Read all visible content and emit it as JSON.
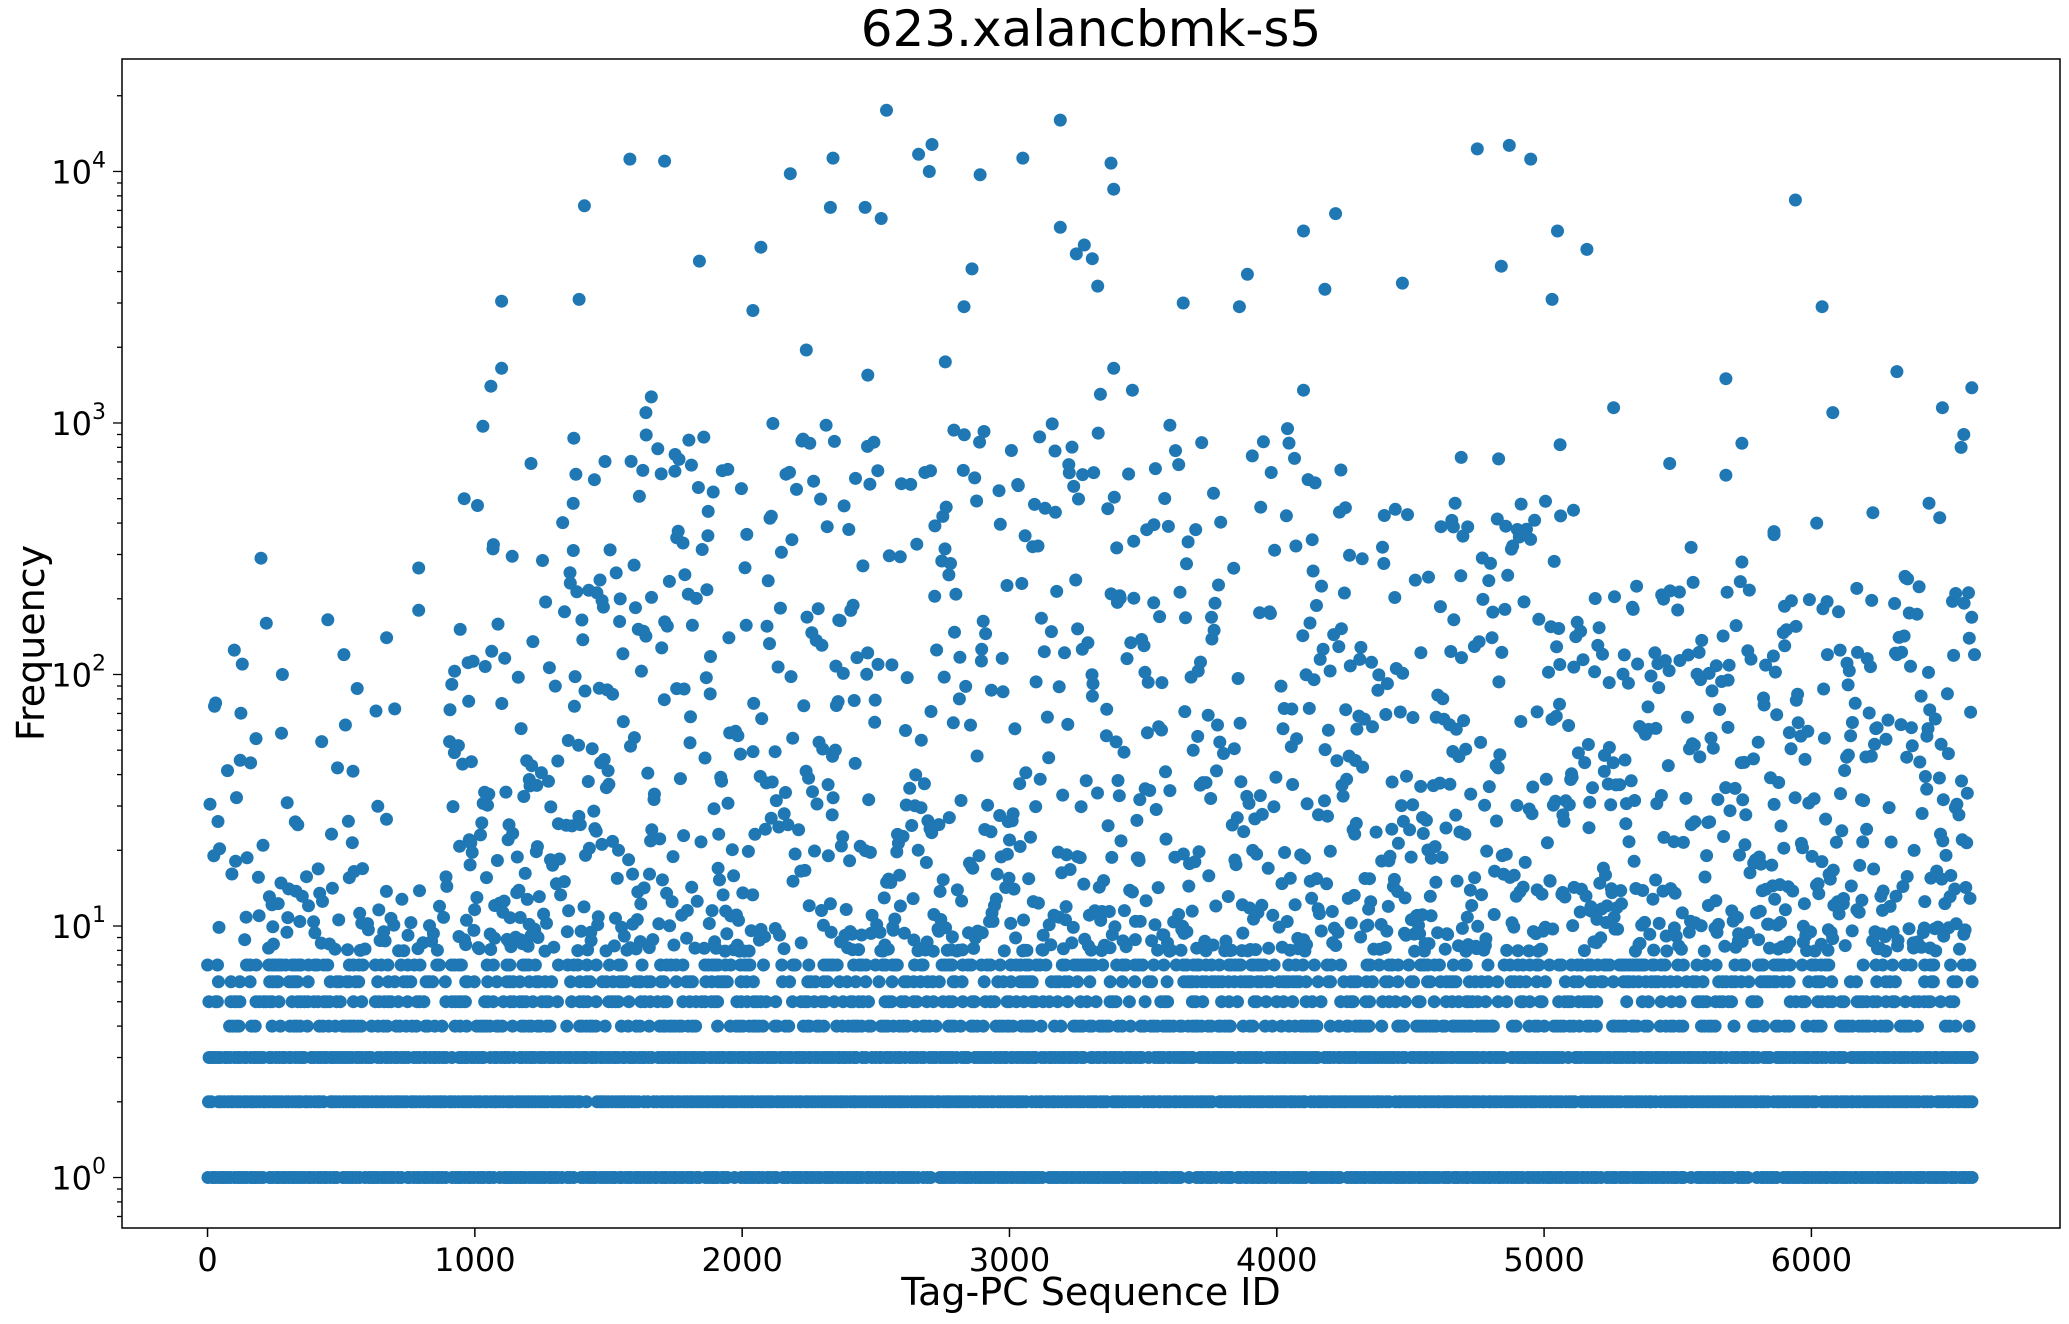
{
  "chart_data": {
    "type": "scatter",
    "title": "623.xalancbmk-s5",
    "xlabel": "Tag-PC Sequence ID",
    "ylabel": "Frequency",
    "x_ticks": [
      "0",
      "1000",
      "2000",
      "3000",
      "4000",
      "5000",
      "6000"
    ],
    "y_ticks": [
      {
        "base": "10",
        "exp": "0"
      },
      {
        "base": "10",
        "exp": "1"
      },
      {
        "base": "10",
        "exp": "2"
      },
      {
        "base": "10",
        "exp": "3"
      },
      {
        "base": "10",
        "exp": "4"
      }
    ],
    "xlim": [
      -320,
      6930
    ],
    "ylim": [
      0.63,
      28000
    ],
    "yscale": "log",
    "grid": false,
    "marker_color": "#1f77b4",
    "n_points": 6600,
    "baseline_levels": [
      {
        "y": 1,
        "x_range": [
          0,
          6600
        ]
      },
      {
        "y": 2,
        "x_range": [
          0,
          6600
        ]
      },
      {
        "y": 3,
        "x_range": [
          0,
          6600
        ]
      },
      {
        "y": 4,
        "x_range": [
          80,
          6600
        ]
      },
      {
        "y": 5,
        "x_range": [
          0,
          6600
        ]
      },
      {
        "y": 6,
        "x_range": [
          0,
          6600
        ]
      },
      {
        "y": 7,
        "x_range": [
          0,
          6600
        ]
      }
    ],
    "highlight_points": [
      {
        "x": 2540,
        "y": 17500
      },
      {
        "x": 3190,
        "y": 16000
      },
      {
        "x": 2710,
        "y": 12800
      },
      {
        "x": 4750,
        "y": 12300
      },
      {
        "x": 4870,
        "y": 12700
      },
      {
        "x": 4950,
        "y": 11200
      },
      {
        "x": 1580,
        "y": 11200
      },
      {
        "x": 1710,
        "y": 11000
      },
      {
        "x": 2340,
        "y": 11300
      },
      {
        "x": 3050,
        "y": 11300
      },
      {
        "x": 3380,
        "y": 10800
      },
      {
        "x": 2660,
        "y": 11700
      },
      {
        "x": 2180,
        "y": 9800
      },
      {
        "x": 2890,
        "y": 9700
      },
      {
        "x": 2700,
        "y": 10000
      },
      {
        "x": 3390,
        "y": 8500
      },
      {
        "x": 5940,
        "y": 7700
      },
      {
        "x": 1410,
        "y": 7300
      },
      {
        "x": 2330,
        "y": 7200
      },
      {
        "x": 2460,
        "y": 7200
      },
      {
        "x": 2520,
        "y": 6500
      },
      {
        "x": 4220,
        "y": 6800
      },
      {
        "x": 3190,
        "y": 6000
      },
      {
        "x": 4100,
        "y": 5800
      },
      {
        "x": 5050,
        "y": 5800
      },
      {
        "x": 5160,
        "y": 4900
      },
      {
        "x": 2070,
        "y": 5000
      },
      {
        "x": 1840,
        "y": 4400
      },
      {
        "x": 4840,
        "y": 4200
      },
      {
        "x": 4470,
        "y": 3600
      },
      {
        "x": 1390,
        "y": 3100
      },
      {
        "x": 1100,
        "y": 3050
      },
      {
        "x": 5030,
        "y": 3100
      },
      {
        "x": 6040,
        "y": 2900
      },
      {
        "x": 3890,
        "y": 3900
      },
      {
        "x": 4180,
        "y": 3400
      },
      {
        "x": 3650,
        "y": 3000
      },
      {
        "x": 2040,
        "y": 2800
      },
      {
        "x": 1100,
        "y": 1650
      },
      {
        "x": 1060,
        "y": 1400
      },
      {
        "x": 6320,
        "y": 1600
      },
      {
        "x": 5680,
        "y": 1500
      },
      {
        "x": 6600,
        "y": 1380
      },
      {
        "x": 4100,
        "y": 1350
      },
      {
        "x": 5260,
        "y": 1150
      },
      {
        "x": 6490,
        "y": 1150
      },
      {
        "x": 6080,
        "y": 1100
      },
      {
        "x": 3600,
        "y": 980
      },
      {
        "x": 6570,
        "y": 900
      },
      {
        "x": 6560,
        "y": 800
      },
      {
        "x": 4240,
        "y": 650
      },
      {
        "x": 5110,
        "y": 450
      },
      {
        "x": 6440,
        "y": 480
      },
      {
        "x": 6230,
        "y": 440
      },
      {
        "x": 6480,
        "y": 420
      },
      {
        "x": 5860,
        "y": 360
      },
      {
        "x": 6020,
        "y": 400
      },
      {
        "x": 5740,
        "y": 280
      },
      {
        "x": 5470,
        "y": 690
      },
      {
        "x": 5550,
        "y": 320
      },
      {
        "x": 5900,
        "y": 130
      },
      {
        "x": 6060,
        "y": 120
      },
      {
        "x": 6170,
        "y": 220
      },
      {
        "x": 6360,
        "y": 240
      },
      {
        "x": 6540,
        "y": 210
      },
      {
        "x": 6610,
        "y": 120
      },
      {
        "x": 200,
        "y": 290
      },
      {
        "x": 220,
        "y": 160
      },
      {
        "x": 450,
        "y": 165
      },
      {
        "x": 100,
        "y": 125
      },
      {
        "x": 130,
        "y": 110
      },
      {
        "x": 510,
        "y": 120
      },
      {
        "x": 670,
        "y": 140
      },
      {
        "x": 790,
        "y": 180
      },
      {
        "x": 790,
        "y": 265
      },
      {
        "x": 30,
        "y": 77
      },
      {
        "x": 700,
        "y": 73
      },
      {
        "x": 280,
        "y": 100
      },
      {
        "x": 560,
        "y": 88
      },
      {
        "x": 960,
        "y": 500
      },
      {
        "x": 1010,
        "y": 470
      },
      {
        "x": 1030,
        "y": 970
      },
      {
        "x": 1210,
        "y": 690
      },
      {
        "x": 1660,
        "y": 1270
      },
      {
        "x": 1370,
        "y": 870
      },
      {
        "x": 1640,
        "y": 1100
      },
      {
        "x": 1810,
        "y": 680
      },
      {
        "x": 2760,
        "y": 1750
      },
      {
        "x": 2830,
        "y": 2900
      },
      {
        "x": 2860,
        "y": 4100
      },
      {
        "x": 2470,
        "y": 1550
      },
      {
        "x": 2240,
        "y": 1950
      },
      {
        "x": 3280,
        "y": 5100
      },
      {
        "x": 3250,
        "y": 4700
      },
      {
        "x": 3310,
        "y": 4500
      },
      {
        "x": 3330,
        "y": 3500
      },
      {
        "x": 3390,
        "y": 1650
      },
      {
        "x": 3340,
        "y": 1300
      },
      {
        "x": 3460,
        "y": 1350
      },
      {
        "x": 3860,
        "y": 2900
      },
      {
        "x": 4040,
        "y": 950
      },
      {
        "x": 4690,
        "y": 730
      },
      {
        "x": 4830,
        "y": 720
      },
      {
        "x": 5060,
        "y": 820
      },
      {
        "x": 5680,
        "y": 620
      },
      {
        "x": 5740,
        "y": 830
      },
      {
        "x": 5860,
        "y": 370
      }
    ]
  }
}
